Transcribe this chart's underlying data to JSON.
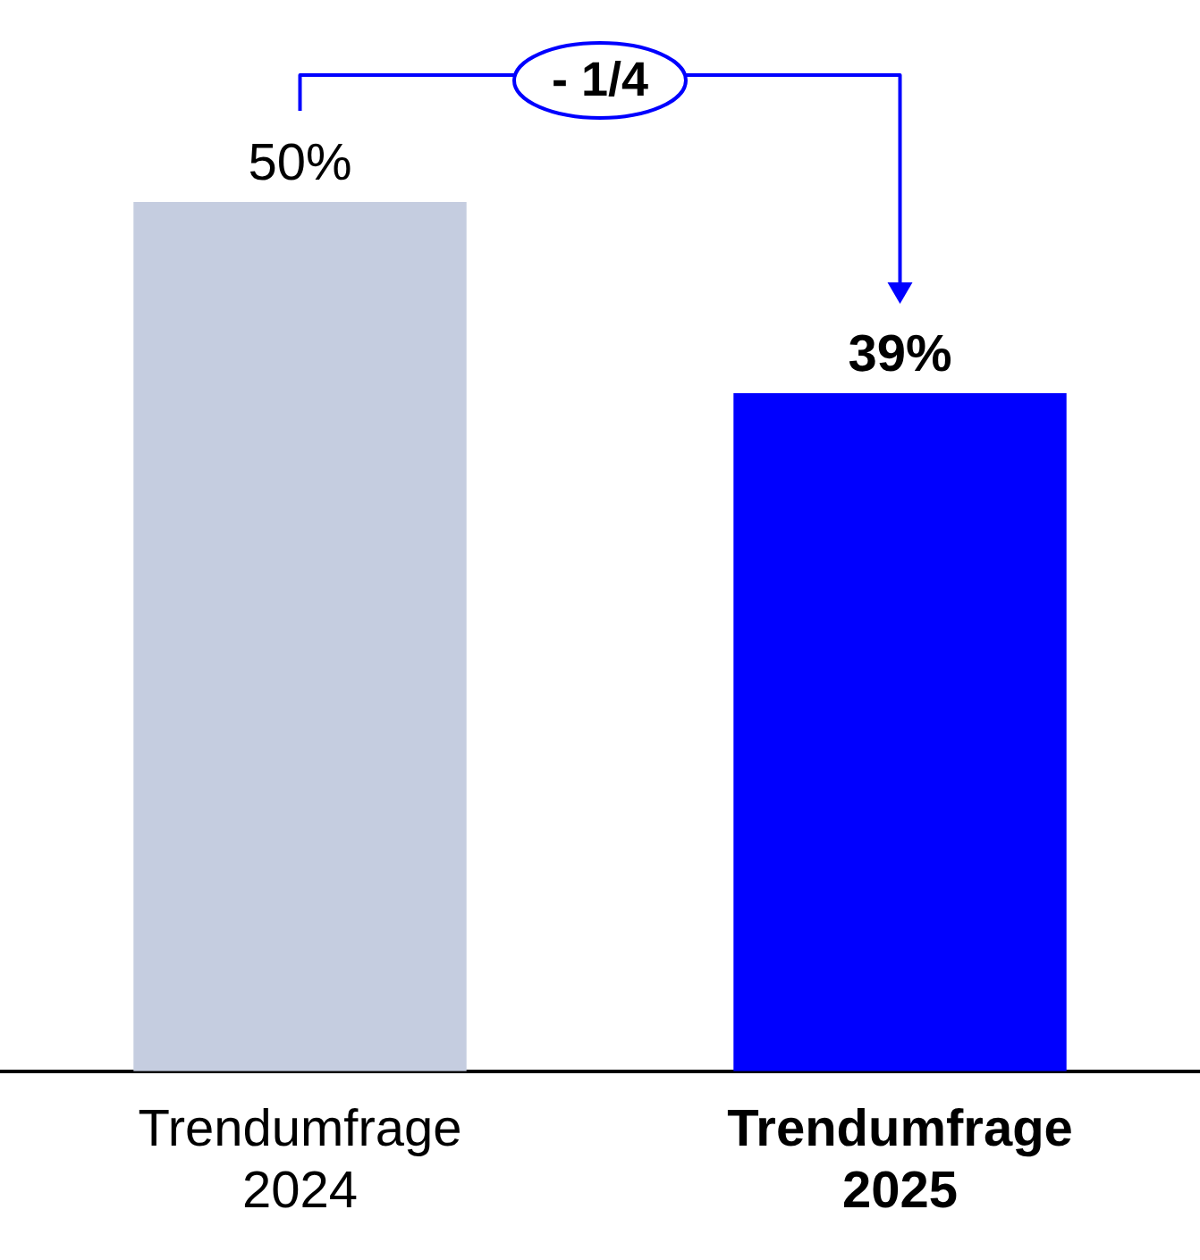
{
  "chart_data": {
    "type": "bar",
    "categories": [
      "Trendumfrage 2024",
      "Trendumfrage 2025"
    ],
    "values": [
      50,
      39
    ],
    "colors": [
      "#c5cde0",
      "#0000ff"
    ],
    "value_labels": [
      "50%",
      "39%"
    ],
    "tick_labels": "x",
    "grid": false,
    "legend": false,
    "annotations": [
      "- 1/4"
    ]
  }
}
